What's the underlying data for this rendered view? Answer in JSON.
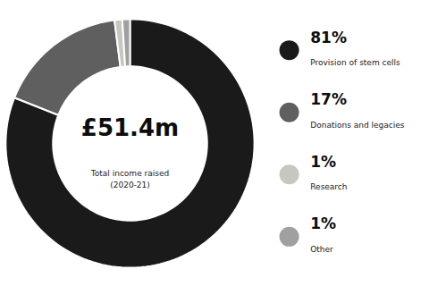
{
  "chart_data": {
    "type": "pie",
    "title": "£51.4m",
    "subtitle": "Total income raised\n(2020-21)",
    "categories": [
      "Provision of stem cells",
      "Donations and legacies",
      "Research",
      "Other"
    ],
    "values": [
      81,
      17,
      1,
      1
    ],
    "value_labels": [
      "81%",
      "17%",
      "1%",
      "1%"
    ],
    "colors": [
      "#1a1a1a",
      "#5f5f5f",
      "#c8c6c0",
      "#a0a0a0"
    ],
    "data_labels": true,
    "legend": "right"
  }
}
